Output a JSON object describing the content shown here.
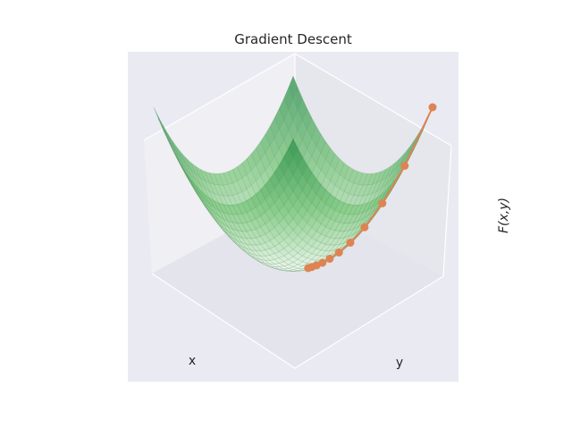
{
  "chart_data": {
    "type": "surface3d",
    "title": "Gradient Descent",
    "xlabel": "x",
    "ylabel": "y",
    "zlabel": "F(x,y)",
    "surface": {
      "function": "x^2 + y^2",
      "colormap": "Greens",
      "xlim": [
        -5,
        5
      ],
      "ylim": [
        -5,
        5
      ]
    },
    "grid": true,
    "legend": "none",
    "series": [
      {
        "type": "line-markers",
        "color": "#dd8452",
        "points": [
          {
            "x": -5.0,
            "y": 5.0,
            "z": 50.0
          },
          {
            "x": -4.0,
            "y": 4.0,
            "z": 32.0
          },
          {
            "x": -3.2,
            "y": 3.2,
            "z": 20.48
          },
          {
            "x": -2.56,
            "y": 2.56,
            "z": 13.11
          },
          {
            "x": -2.05,
            "y": 2.05,
            "z": 8.39
          },
          {
            "x": -1.64,
            "y": 1.64,
            "z": 5.37
          },
          {
            "x": -1.31,
            "y": 1.31,
            "z": 3.44
          },
          {
            "x": -1.05,
            "y": 1.05,
            "z": 2.2
          },
          {
            "x": -0.84,
            "y": 0.84,
            "z": 1.41
          },
          {
            "x": -0.67,
            "y": 0.67,
            "z": 0.9
          },
          {
            "x": -0.54,
            "y": 0.54,
            "z": 0.58
          }
        ]
      }
    ]
  }
}
